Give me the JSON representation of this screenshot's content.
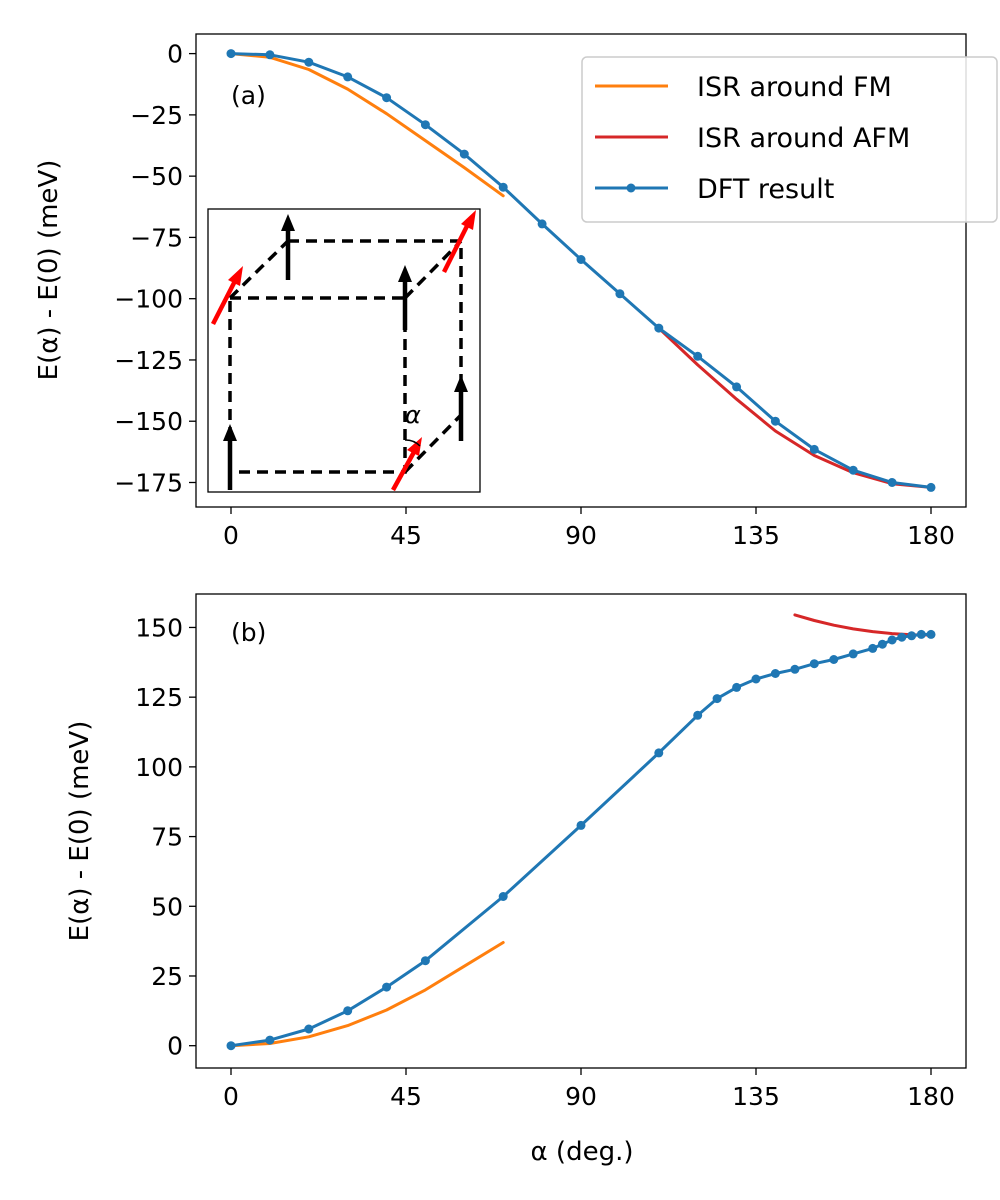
{
  "chart_data": [
    {
      "panel": "(a)",
      "type": "line",
      "ylabel": "E(α) - E(0) (meV)",
      "xlabel": "",
      "xlim": [
        -9,
        189
      ],
      "ylim": [
        -185,
        8
      ],
      "xticks": [
        0,
        45,
        90,
        135,
        180
      ],
      "xtick_labels": [
        "0",
        "45",
        "90",
        "135",
        "180"
      ],
      "yticks": [
        0,
        -25,
        -50,
        -75,
        -100,
        -125,
        -150,
        -175
      ],
      "ytick_labels": [
        "0",
        "−25",
        "−50",
        "−75",
        "−100",
        "−125",
        "−150",
        "−175"
      ],
      "legend_position": "top-right",
      "inset_label": "α",
      "series": [
        {
          "name": "ISR around FM",
          "color": "#ff7f0e",
          "x": [
            0,
            10,
            20,
            30,
            40,
            50,
            60,
            70
          ],
          "values": [
            0,
            -1.5,
            -6.5,
            -14.5,
            -24.5,
            -35.5,
            -46.5,
            -58
          ]
        },
        {
          "name": "ISR around AFM",
          "color": "#d62728",
          "x": [
            110,
            120,
            130,
            140,
            150,
            160,
            170,
            180
          ],
          "values": [
            -112,
            -127,
            -141,
            -154,
            -164,
            -171,
            -175.5,
            -177
          ]
        },
        {
          "name": "DFT result",
          "color": "#1f77b4",
          "markers": true,
          "x": [
            0,
            10,
            20,
            30,
            40,
            50,
            60,
            70,
            80,
            90,
            100,
            110,
            120,
            130,
            140,
            150,
            160,
            170,
            180
          ],
          "values": [
            0,
            -0.5,
            -3.5,
            -9.5,
            -18,
            -29,
            -41,
            -54.5,
            -69.5,
            -84,
            -98,
            -112,
            -123.5,
            -136,
            -150,
            -161.5,
            -170,
            -175,
            -177
          ]
        }
      ]
    },
    {
      "panel": "(b)",
      "type": "line",
      "ylabel": "E(α) - E(0) (meV)",
      "xlabel": "α (deg.)",
      "xlim": [
        -9,
        189
      ],
      "ylim": [
        -8,
        162
      ],
      "xticks": [
        0,
        45,
        90,
        135,
        180
      ],
      "xtick_labels": [
        "0",
        "45",
        "90",
        "135",
        "180"
      ],
      "yticks": [
        0,
        25,
        50,
        75,
        100,
        125,
        150
      ],
      "ytick_labels": [
        "0",
        "25",
        "50",
        "75",
        "100",
        "125",
        "150"
      ],
      "series": [
        {
          "name": "ISR around FM",
          "color": "#ff7f0e",
          "x": [
            0,
            10,
            20,
            30,
            40,
            50,
            60,
            70
          ],
          "values": [
            0,
            0.8,
            3.2,
            7.2,
            12.8,
            20,
            28.5,
            37
          ]
        },
        {
          "name": "ISR around AFM",
          "color": "#d62728",
          "x": [
            145,
            150,
            155,
            160,
            165,
            170,
            175,
            180
          ],
          "values": [
            154.5,
            152.5,
            150.8,
            149.5,
            148.5,
            147.8,
            147.4,
            147.3
          ]
        },
        {
          "name": "DFT result",
          "color": "#1f77b4",
          "markers": true,
          "x": [
            0,
            10,
            20,
            30,
            40,
            50,
            70,
            90,
            110,
            120,
            125,
            130,
            135,
            140,
            145,
            150,
            155,
            160,
            165,
            167.5,
            170,
            172.5,
            175,
            177.5,
            180
          ],
          "values": [
            0,
            2,
            6,
            12.5,
            21,
            30.5,
            53.5,
            79,
            105,
            118.5,
            124.5,
            128.5,
            131.5,
            133.5,
            135,
            137,
            138.5,
            140.5,
            142.5,
            144,
            145.5,
            146.5,
            147,
            147.5,
            147.5
          ]
        }
      ]
    }
  ]
}
